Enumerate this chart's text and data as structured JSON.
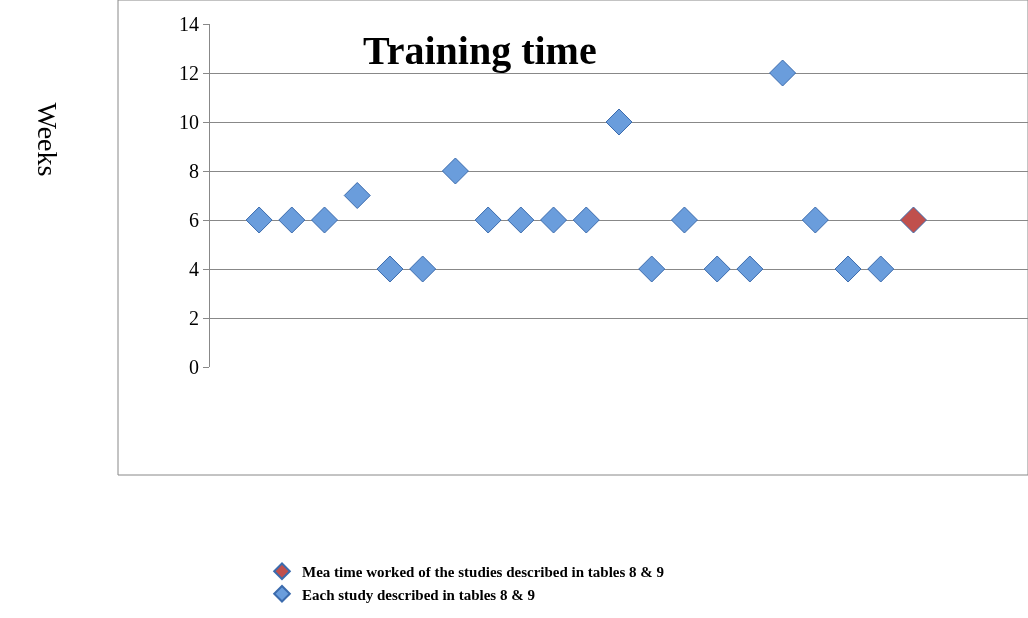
{
  "chart_data": {
    "type": "scatter",
    "title": "Training time",
    "ylabel": "Weeks",
    "categories": [
      null,
      null,
      null,
      null,
      null,
      null,
      null,
      null,
      null,
      null,
      null,
      null,
      null,
      null,
      null,
      null,
      null,
      null,
      null,
      null,
      null,
      null,
      null,
      null,
      null
    ],
    "series": [
      {
        "name": "Mea time worked of the studies described in tables 8 & 9",
        "color": "#c0504d",
        "values": [
          null,
          null,
          null,
          null,
          null,
          null,
          null,
          null,
          null,
          null,
          null,
          null,
          null,
          null,
          null,
          null,
          null,
          null,
          null,
          null,
          null,
          6,
          null,
          null,
          null
        ]
      },
      {
        "name": "Each study described in tables 8 & 9",
        "color": "#6a9ddc",
        "values": [
          null,
          6,
          6,
          6,
          7,
          4,
          4,
          8,
          6,
          6,
          6,
          6,
          10,
          4,
          6,
          4,
          4,
          12,
          6,
          4,
          4,
          null,
          null,
          null,
          null
        ]
      }
    ],
    "ylim": [
      0,
      14
    ],
    "yticks": [
      0,
      2,
      4,
      6,
      8,
      10,
      12,
      14
    ],
    "grid": "y",
    "legend": "bottom",
    "marker": "diamond",
    "tick_labels": "y"
  }
}
